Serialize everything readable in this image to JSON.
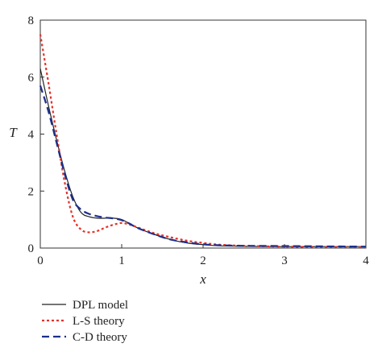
{
  "chart_data": {
    "type": "line",
    "xlabel": "x",
    "ylabel": "T",
    "xlim": [
      0,
      4
    ],
    "ylim": [
      0,
      8
    ],
    "xticks": [
      "0",
      "1",
      "2",
      "3",
      "4"
    ],
    "yticks": [
      "0",
      "2",
      "4",
      "6",
      "8"
    ],
    "grid": false,
    "legend_position": "below-left",
    "series": [
      {
        "name": "DPL model",
        "color": "#222222",
        "style": "solid",
        "x": [
          0,
          0.1,
          0.2,
          0.3,
          0.4,
          0.5,
          0.6,
          0.7,
          0.8,
          0.9,
          1.0,
          1.1,
          1.2,
          1.4,
          1.6,
          1.8,
          2.0,
          2.2,
          2.5,
          3.0,
          3.5,
          4.0
        ],
        "y": [
          6.3,
          5.0,
          3.8,
          2.7,
          1.8,
          1.25,
          1.1,
          1.05,
          1.05,
          1.05,
          1.0,
          0.85,
          0.7,
          0.48,
          0.3,
          0.18,
          0.12,
          0.08,
          0.06,
          0.05,
          0.05,
          0.05
        ]
      },
      {
        "name": "L-S theory",
        "color": "#e3322b",
        "style": "dotted",
        "x": [
          0,
          0.1,
          0.2,
          0.3,
          0.4,
          0.5,
          0.6,
          0.7,
          0.8,
          0.9,
          1.0,
          1.1,
          1.2,
          1.4,
          1.6,
          1.8,
          2.0,
          2.2,
          2.5,
          3.0,
          3.5,
          4.0
        ],
        "y": [
          7.5,
          5.8,
          4.0,
          2.3,
          1.1,
          0.65,
          0.55,
          0.6,
          0.72,
          0.82,
          0.88,
          0.82,
          0.72,
          0.52,
          0.38,
          0.26,
          0.18,
          0.12,
          0.08,
          0.05,
          0.04,
          0.03
        ]
      },
      {
        "name": "C-D theory",
        "color": "#1c2f8c",
        "style": "dashed",
        "x": [
          0,
          0.1,
          0.2,
          0.3,
          0.4,
          0.5,
          0.6,
          0.7,
          0.8,
          0.9,
          1.0,
          1.1,
          1.2,
          1.4,
          1.6,
          1.8,
          2.0,
          2.2,
          2.5,
          3.0,
          3.5,
          4.0
        ],
        "y": [
          5.7,
          4.8,
          3.7,
          2.6,
          1.7,
          1.35,
          1.2,
          1.12,
          1.07,
          1.04,
          0.98,
          0.85,
          0.7,
          0.48,
          0.3,
          0.2,
          0.13,
          0.1,
          0.08,
          0.07,
          0.06,
          0.05
        ]
      }
    ]
  }
}
